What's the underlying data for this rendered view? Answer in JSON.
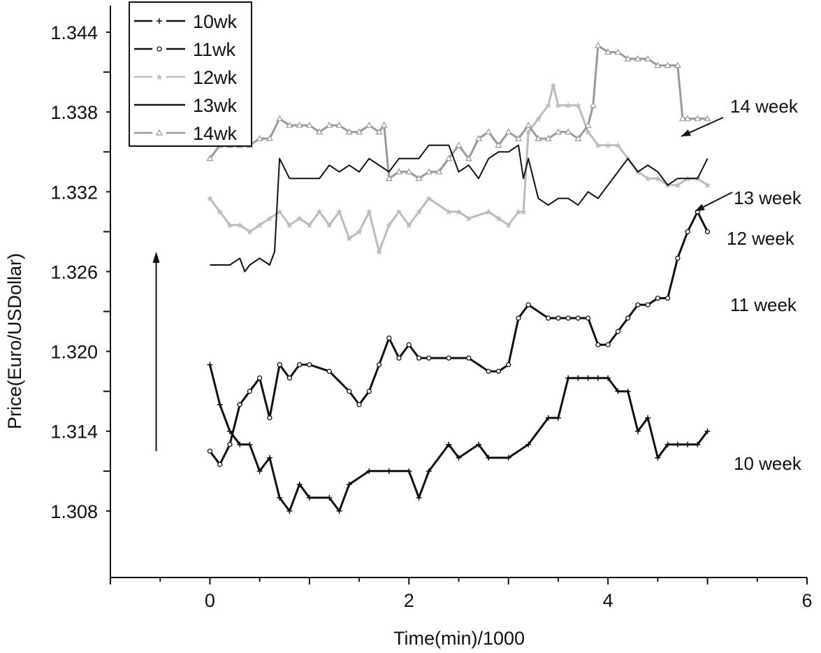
{
  "chart_data": {
    "type": "line",
    "title": "",
    "xlabel": "Time(min)/1000",
    "ylabel": "Price(Euro/USDollar)",
    "xlim": [
      -1,
      6
    ],
    "ylim": [
      1.303,
      1.346
    ],
    "x_ticks": [
      0,
      2,
      4,
      6
    ],
    "x_tick_labels": [
      "0",
      "2",
      "4",
      "6"
    ],
    "y_ticks": [
      1.308,
      1.314,
      1.32,
      1.326,
      1.332,
      1.338,
      1.344
    ],
    "y_tick_labels": [
      "1.308",
      "1.314",
      "1.320",
      "1.326",
      "1.332",
      "1.338",
      "1.344"
    ],
    "grid": false,
    "legend_position": "top-left",
    "series": [
      {
        "name": "10wk",
        "color": "#111111",
        "marker": "plus",
        "x": [
          0.0,
          0.1,
          0.2,
          0.3,
          0.4,
          0.5,
          0.6,
          0.7,
          0.8,
          0.9,
          1.0,
          1.2,
          1.3,
          1.4,
          1.6,
          1.8,
          2.0,
          2.1,
          2.2,
          2.4,
          2.5,
          2.7,
          2.8,
          3.0,
          3.2,
          3.4,
          3.5,
          3.6,
          3.7,
          3.8,
          3.9,
          4.0,
          4.1,
          4.2,
          4.3,
          4.4,
          4.5,
          4.6,
          4.7,
          4.8,
          4.9,
          5.0
        ],
        "y": [
          1.319,
          1.316,
          1.314,
          1.313,
          1.313,
          1.311,
          1.312,
          1.309,
          1.308,
          1.31,
          1.309,
          1.309,
          1.308,
          1.31,
          1.311,
          1.311,
          1.311,
          1.309,
          1.311,
          1.313,
          1.312,
          1.313,
          1.312,
          1.312,
          1.313,
          1.315,
          1.315,
          1.318,
          1.318,
          1.318,
          1.318,
          1.318,
          1.317,
          1.317,
          1.314,
          1.315,
          1.312,
          1.313,
          1.313,
          1.313,
          1.313,
          1.314
        ]
      },
      {
        "name": "11wk",
        "color": "#111111",
        "marker": "circle",
        "x": [
          0.0,
          0.1,
          0.2,
          0.3,
          0.4,
          0.5,
          0.6,
          0.7,
          0.8,
          0.9,
          1.0,
          1.2,
          1.4,
          1.5,
          1.6,
          1.7,
          1.8,
          1.9,
          2.0,
          2.1,
          2.2,
          2.4,
          2.6,
          2.8,
          2.9,
          3.0,
          3.1,
          3.2,
          3.4,
          3.5,
          3.6,
          3.7,
          3.8,
          3.9,
          4.0,
          4.1,
          4.2,
          4.3,
          4.4,
          4.5,
          4.6,
          4.7,
          4.8,
          4.9,
          5.0
        ],
        "y": [
          1.3125,
          1.3115,
          1.313,
          1.316,
          1.317,
          1.318,
          1.315,
          1.319,
          1.318,
          1.319,
          1.319,
          1.3185,
          1.317,
          1.316,
          1.317,
          1.319,
          1.321,
          1.3195,
          1.3205,
          1.3195,
          1.3195,
          1.3195,
          1.3195,
          1.3185,
          1.3185,
          1.319,
          1.3225,
          1.3235,
          1.3225,
          1.3225,
          1.3225,
          1.3225,
          1.3225,
          1.3205,
          1.3205,
          1.3215,
          1.3225,
          1.3235,
          1.3235,
          1.324,
          1.324,
          1.327,
          1.329,
          1.3305,
          1.329
        ]
      },
      {
        "name": "12wk",
        "color": "#bbbbbb",
        "marker": "star",
        "x": [
          0.0,
          0.1,
          0.2,
          0.3,
          0.4,
          0.5,
          0.6,
          0.7,
          0.8,
          0.9,
          1.0,
          1.1,
          1.2,
          1.3,
          1.4,
          1.5,
          1.6,
          1.7,
          1.8,
          1.9,
          2.0,
          2.1,
          2.2,
          2.4,
          2.5,
          2.6,
          2.8,
          2.9,
          3.0,
          3.1,
          3.15,
          3.2,
          3.3,
          3.4,
          3.45,
          3.5,
          3.6,
          3.7,
          3.8,
          3.9,
          4.0,
          4.1,
          4.2,
          4.3,
          4.4,
          4.5,
          4.6,
          4.7,
          4.8,
          4.9,
          5.0
        ],
        "y": [
          1.3315,
          1.3305,
          1.3295,
          1.3295,
          1.329,
          1.3295,
          1.33,
          1.3305,
          1.3295,
          1.33,
          1.3295,
          1.3305,
          1.3295,
          1.3305,
          1.3285,
          1.329,
          1.3305,
          1.3275,
          1.3295,
          1.3305,
          1.3295,
          1.3305,
          1.3315,
          1.3305,
          1.3305,
          1.33,
          1.3305,
          1.33,
          1.3295,
          1.3305,
          1.3305,
          1.3365,
          1.3375,
          1.3385,
          1.34,
          1.3385,
          1.3385,
          1.3385,
          1.3365,
          1.3355,
          1.3355,
          1.3355,
          1.3345,
          1.3335,
          1.333,
          1.333,
          1.3325,
          1.3325,
          1.333,
          1.333,
          1.3325
        ]
      },
      {
        "name": "13wk",
        "color": "#111111",
        "marker": "none",
        "x": [
          0.0,
          0.1,
          0.2,
          0.3,
          0.35,
          0.4,
          0.5,
          0.6,
          0.65,
          0.7,
          0.8,
          0.9,
          1.0,
          1.1,
          1.2,
          1.3,
          1.4,
          1.5,
          1.6,
          1.7,
          1.8,
          1.9,
          2.0,
          2.1,
          2.2,
          2.4,
          2.5,
          2.6,
          2.7,
          2.8,
          2.9,
          3.0,
          3.1,
          3.15,
          3.2,
          3.3,
          3.4,
          3.5,
          3.6,
          3.7,
          3.8,
          3.9,
          4.0,
          4.1,
          4.2,
          4.3,
          4.4,
          4.5,
          4.6,
          4.7,
          4.8,
          4.9,
          5.0
        ],
        "y": [
          1.3265,
          1.3265,
          1.3265,
          1.327,
          1.326,
          1.3265,
          1.327,
          1.3265,
          1.3275,
          1.3345,
          1.333,
          1.333,
          1.333,
          1.333,
          1.334,
          1.3335,
          1.334,
          1.3335,
          1.3345,
          1.334,
          1.3335,
          1.3345,
          1.3345,
          1.3345,
          1.3355,
          1.3355,
          1.3335,
          1.334,
          1.333,
          1.3345,
          1.335,
          1.335,
          1.3355,
          1.333,
          1.3345,
          1.3315,
          1.331,
          1.3315,
          1.3315,
          1.331,
          1.332,
          1.3315,
          1.3325,
          1.3335,
          1.3345,
          1.3335,
          1.334,
          1.3335,
          1.3325,
          1.333,
          1.333,
          1.333,
          1.3345
        ]
      },
      {
        "name": "14wk",
        "color": "#999999",
        "marker": "triangle",
        "x": [
          0.0,
          0.1,
          0.2,
          0.3,
          0.4,
          0.5,
          0.6,
          0.7,
          0.8,
          0.9,
          1.0,
          1.1,
          1.2,
          1.3,
          1.4,
          1.5,
          1.6,
          1.7,
          1.75,
          1.8,
          1.9,
          2.0,
          2.1,
          2.2,
          2.3,
          2.4,
          2.5,
          2.6,
          2.7,
          2.8,
          2.9,
          3.0,
          3.1,
          3.2,
          3.3,
          3.4,
          3.5,
          3.6,
          3.7,
          3.8,
          3.85,
          3.9,
          4.0,
          4.1,
          4.2,
          4.3,
          4.4,
          4.5,
          4.6,
          4.7,
          4.75,
          4.8,
          4.9,
          5.0
        ],
        "y": [
          1.3345,
          1.3355,
          1.3355,
          1.3355,
          1.3355,
          1.336,
          1.336,
          1.3375,
          1.337,
          1.337,
          1.337,
          1.3365,
          1.337,
          1.337,
          1.3365,
          1.3365,
          1.337,
          1.3365,
          1.337,
          1.333,
          1.3335,
          1.3335,
          1.333,
          1.3335,
          1.3335,
          1.3345,
          1.3355,
          1.3345,
          1.336,
          1.3365,
          1.3355,
          1.3365,
          1.336,
          1.337,
          1.336,
          1.336,
          1.3365,
          1.3365,
          1.336,
          1.337,
          1.3385,
          1.343,
          1.3425,
          1.3425,
          1.342,
          1.342,
          1.342,
          1.3415,
          1.3415,
          1.3415,
          1.3375,
          1.3375,
          1.3375,
          1.3375
        ]
      }
    ],
    "annotations": [
      {
        "text": "14 week",
        "x": 4.75,
        "y": 1.3395
      },
      {
        "text": "13 week",
        "x": 4.98,
        "y": 1.3335
      },
      {
        "text": "12 week",
        "x": 5.1,
        "y": 1.3315
      },
      {
        "text": "11 week",
        "x": 5.1,
        "y": 1.3275
      },
      {
        "text": "10 week",
        "x": 5.1,
        "y": 1.3135
      }
    ],
    "arrow": {
      "x": -0.54,
      "y_from": 1.3125,
      "y_to": 1.3275
    }
  }
}
